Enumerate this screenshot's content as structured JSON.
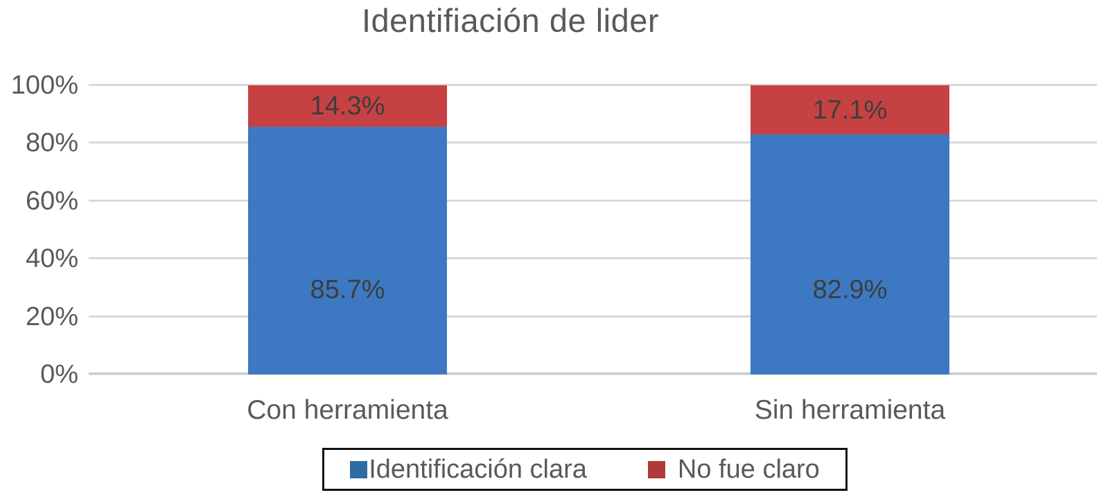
{
  "chart_data": {
    "type": "bar",
    "stacked": true,
    "title": "Identifiación de lider",
    "categories": [
      "Con herramienta",
      "Sin herramienta"
    ],
    "series": [
      {
        "name": "Identificación clara",
        "color": "#3d79c2",
        "legend_color": "#2e6da4",
        "values": [
          85.7,
          82.9
        ],
        "data_labels": [
          "85.7%",
          "82.9%"
        ]
      },
      {
        "name": "No fue claro",
        "color": "#c64242",
        "legend_color": "#b03a3a",
        "values": [
          14.3,
          17.1
        ],
        "data_labels": [
          "14.3%",
          "17.1%"
        ]
      }
    ],
    "y_axis": {
      "ticks": [
        "0%",
        "20%",
        "40%",
        "60%",
        "80%",
        "100%"
      ],
      "tick_values": [
        0,
        20,
        40,
        60,
        80,
        100
      ],
      "min": 0,
      "max": 100,
      "grid": true
    },
    "legend": {
      "position": "bottom",
      "border": true,
      "entries": [
        "Identificación clara",
        "No fue claro"
      ]
    },
    "colors": {
      "title_text": "#595959",
      "axis_text": "#595959",
      "data_label_text": "#3d3d3d",
      "gridline": "#d9d9d9",
      "legend_border": "#111111",
      "background": "#ffffff"
    }
  }
}
